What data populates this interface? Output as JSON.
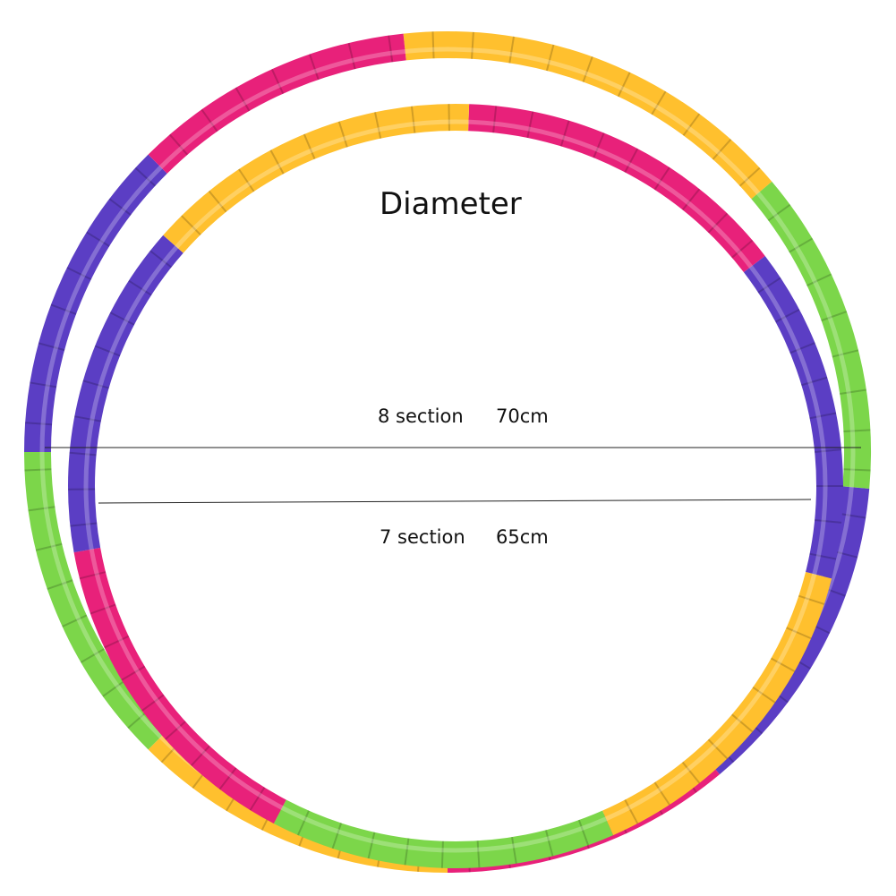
{
  "title": "Diameter",
  "hoops": [
    {
      "sections_label": "8 section",
      "diameter_label": "70cm",
      "segments": [
        {
          "color": "#ffc02e",
          "from": -6,
          "to": 50
        },
        {
          "color": "#7cd64a",
          "from": 50,
          "to": 95
        },
        {
          "color": "#5b3ec4",
          "from": 95,
          "to": 140
        },
        {
          "color": "#e8217a",
          "from": 140,
          "to": 180
        },
        {
          "color": "#ffc02e",
          "from": 180,
          "to": 225
        },
        {
          "color": "#7cd64a",
          "from": 225,
          "to": 270
        },
        {
          "color": "#5b3ec4",
          "from": 270,
          "to": 315
        },
        {
          "color": "#e8217a",
          "from": 315,
          "to": 354
        }
      ]
    },
    {
      "sections_label": "7 section",
      "diameter_label": "65cm",
      "segments": [
        {
          "color": "#e8217a",
          "from": 2,
          "to": 53
        },
        {
          "color": "#5b3ec4",
          "from": 53,
          "to": 104
        },
        {
          "color": "#ffc02e",
          "from": 104,
          "to": 156
        },
        {
          "color": "#7cd64a",
          "from": 156,
          "to": 208
        },
        {
          "color": "#e8217a",
          "from": 208,
          "to": 260
        },
        {
          "color": "#5b3ec4",
          "from": 260,
          "to": 311
        },
        {
          "color": "#ffc02e",
          "from": 311,
          "to": 362
        }
      ]
    }
  ]
}
